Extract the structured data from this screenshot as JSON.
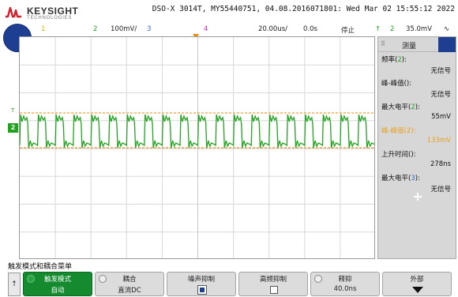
{
  "header": {
    "brand": "KEYSIGHT",
    "brand_sub": "TECHNOLOGIES",
    "device_line": "DSO-X 3014T, MY55440751, 04.08.2016071801: Wed Mar 02 15:55:12 2022"
  },
  "channel_bar": {
    "ch1": "1",
    "ch2": "2",
    "ch2_scale": "100mV/",
    "ch3": "3",
    "ch4": "4",
    "timebase": "20.00us/",
    "delay": "0.0s",
    "run_state": "停止",
    "trig_icon": "↑",
    "trig_source": "2",
    "trig_level": "35.0mV",
    "trig_slope_icon": "∿"
  },
  "screen": {
    "ch2_marker": "2",
    "trig_level_marker": "T",
    "colors": {
      "ch1": "#c9b800",
      "ch2": "#22a320",
      "ch3": "#2b6bd6",
      "ch4": "#c52ac5",
      "cursor": "#f08a00"
    }
  },
  "measurements": {
    "title": "测量",
    "items": [
      {
        "label": "频率(",
        "src": "2",
        "suffix": "):",
        "value": "无信号",
        "highlight": false,
        "src_color": "ch2"
      },
      {
        "label": "峰-峰值(",
        "src": "",
        "suffix": "):",
        "value": "无信号",
        "highlight": false,
        "src_color": "ch2"
      },
      {
        "label": "最大电平(",
        "src": "2",
        "suffix": "):",
        "value": "55mV",
        "highlight": false,
        "src_color": "ch2"
      },
      {
        "label": "峰-峰值(",
        "src": "2",
        "suffix": "):",
        "value": "133mV",
        "highlight": true,
        "src_color": "ch2"
      },
      {
        "label": "上升时间(",
        "src": "",
        "suffix": "):",
        "value": "278ns",
        "highlight": false,
        "src_color": "ch2"
      },
      {
        "label": "最大电平(",
        "src": "3",
        "suffix": "):",
        "value": "无信号",
        "highlight": false,
        "src_color": "ch3"
      }
    ],
    "add_label": "+"
  },
  "softkeys": {
    "menu_title": "触发模式和耦合菜单",
    "back_icon": "↑",
    "keys": [
      {
        "top": "触发模式",
        "bottom": "自动"
      },
      {
        "top": "耦合",
        "bottom": "直流DC"
      },
      {
        "top": "噪声抑制",
        "bottom": ""
      },
      {
        "top": "高频抑制",
        "bottom": ""
      },
      {
        "top": "释抑",
        "bottom": "40.0ns"
      },
      {
        "top": "外部",
        "bottom": ""
      }
    ]
  },
  "waveform": {
    "channel": "2",
    "cycles": 20,
    "shape": "square-with-ringing",
    "upper_cursor_label": "",
    "lower_cursor_label": ""
  }
}
